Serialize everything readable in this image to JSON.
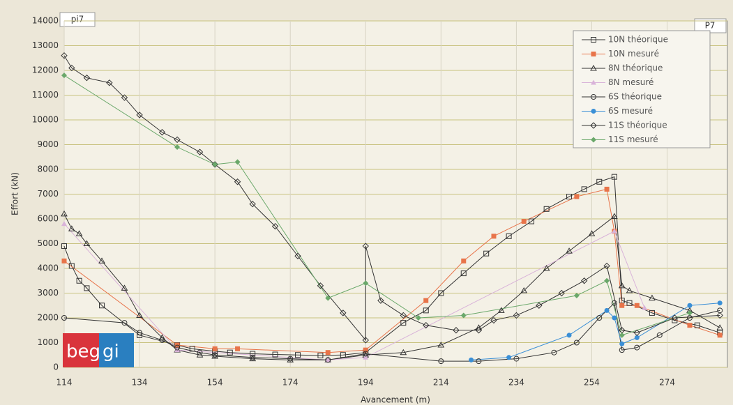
{
  "chart_data": {
    "type": "line",
    "xlabel": "Avancement (m)",
    "ylabel": "Effort (kN)",
    "annotations": [
      "pi7",
      "P7"
    ],
    "logo": [
      "beg",
      "gi"
    ],
    "xlim": [
      114,
      290
    ],
    "xticks": [
      114,
      134,
      154,
      174,
      194,
      214,
      234,
      254,
      274
    ],
    "ylim": [
      0,
      14000
    ],
    "yticks": [
      0,
      1000,
      2000,
      3000,
      4000,
      5000,
      6000,
      7000,
      8000,
      9000,
      10000,
      11000,
      12000,
      13000,
      14000
    ],
    "grid": true,
    "legend": "upper right",
    "series": [
      {
        "name": "10N théorique",
        "color": "#333333",
        "marker": "square",
        "filled": false,
        "x": [
          114,
          116,
          118,
          120,
          124,
          134,
          144,
          148,
          154,
          158,
          164,
          170,
          176,
          182,
          188,
          194,
          204,
          210,
          214,
          220,
          226,
          232,
          238,
          242,
          248,
          252,
          256,
          260,
          262,
          264,
          270,
          276,
          282,
          288
        ],
        "values": [
          4900,
          4100,
          3500,
          3200,
          2500,
          1300,
          900,
          750,
          650,
          600,
          550,
          520,
          500,
          480,
          500,
          600,
          1800,
          2300,
          3000,
          3800,
          4600,
          5300,
          5900,
          6400,
          6900,
          7200,
          7500,
          7700,
          2700,
          2600,
          2200,
          1900,
          1700,
          1400
        ]
      },
      {
        "name": "10N mesuré",
        "color": "#e8744a",
        "marker": "square",
        "filled": true,
        "x": [
          114,
          144,
          154,
          160,
          184,
          194,
          210,
          220,
          228,
          236,
          250,
          258,
          260,
          262,
          266,
          280,
          288
        ],
        "values": [
          4300,
          900,
          750,
          750,
          600,
          700,
          2700,
          4300,
          5300,
          5900,
          6900,
          7200,
          5500,
          2500,
          2500,
          1700,
          1300
        ]
      },
      {
        "name": "8N théorique",
        "color": "#333333",
        "marker": "triangle",
        "filled": false,
        "x": [
          114,
          116,
          118,
          120,
          124,
          130,
          134,
          140,
          144,
          150,
          154,
          164,
          174,
          184,
          194,
          204,
          214,
          224,
          230,
          236,
          242,
          248,
          254,
          260,
          262,
          264,
          270,
          280,
          288
        ],
        "values": [
          6200,
          5600,
          5400,
          5000,
          4300,
          3200,
          2100,
          1200,
          700,
          500,
          450,
          350,
          300,
          300,
          500,
          600,
          900,
          1600,
          2300,
          3100,
          4000,
          4700,
          5400,
          6100,
          3300,
          3100,
          2800,
          2300,
          1600
        ]
      },
      {
        "name": "8N mesuré",
        "color": "#d9b3d9",
        "marker": "triangle",
        "filled": true,
        "x": [
          114,
          144,
          184,
          194,
          260,
          268
        ],
        "values": [
          5800,
          700,
          300,
          400,
          5500,
          2400
        ]
      },
      {
        "name": "6S théorique",
        "color": "#333333",
        "marker": "circle",
        "filled": false,
        "x": [
          114,
          130,
          134,
          140,
          144,
          150,
          154,
          164,
          174,
          184,
          194,
          214,
          224,
          234,
          244,
          250,
          256,
          260,
          262,
          266,
          272,
          280,
          288
        ],
        "values": [
          2000,
          1800,
          1400,
          1100,
          800,
          600,
          500,
          400,
          350,
          300,
          550,
          250,
          250,
          350,
          600,
          1000,
          2000,
          2600,
          700,
          800,
          1300,
          2000,
          2300
        ]
      },
      {
        "name": "6S mesuré",
        "color": "#3a8fd6",
        "marker": "circle",
        "filled": true,
        "x": [
          222,
          232,
          248,
          258,
          260,
          262,
          266,
          280,
          288
        ],
        "values": [
          300,
          400,
          1300,
          2300,
          2000,
          950,
          1200,
          2500,
          2600
        ]
      },
      {
        "name": "11S théorique",
        "color": "#333333",
        "marker": "diamond",
        "filled": false,
        "x": [
          114,
          116,
          120,
          126,
          130,
          134,
          140,
          144,
          150,
          154,
          160,
          164,
          170,
          176,
          182,
          188,
          194,
          194,
          198,
          204,
          210,
          218,
          224,
          228,
          234,
          240,
          246,
          252,
          258,
          262,
          266,
          276,
          288
        ],
        "values": [
          12600,
          12100,
          11700,
          11500,
          10900,
          10200,
          9500,
          9200,
          8700,
          8200,
          7500,
          6600,
          5700,
          4500,
          3300,
          2200,
          1100,
          4900,
          2700,
          2100,
          1700,
          1500,
          1500,
          1900,
          2100,
          2500,
          3000,
          3500,
          4100,
          1500,
          1400,
          2000,
          2100
        ]
      },
      {
        "name": "11S mesuré",
        "color": "#6aa86a",
        "marker": "diamond",
        "filled": true,
        "x": [
          114,
          144,
          154,
          160,
          184,
          194,
          208,
          220,
          250,
          258,
          262,
          280
        ],
        "values": [
          11800,
          8900,
          8200,
          8300,
          2800,
          3400,
          2000,
          2100,
          2900,
          3500,
          1300,
          2200
        ]
      }
    ]
  }
}
